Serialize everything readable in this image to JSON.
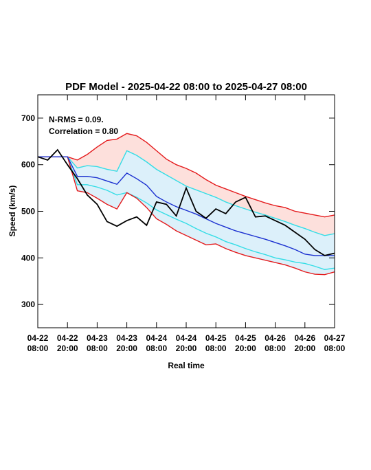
{
  "chart_data": {
    "type": "line",
    "title": "PDF Model - 2025-04-22 08:00 to 2025-04-27 08:00",
    "xlabel": "Real time",
    "ylabel": "Speed (km/s)",
    "annotations": [
      "N-RMS = 0.09.",
      "Correlation = 0.80"
    ],
    "x": [
      "2025-04-22 08:00",
      "2025-04-22 12:00",
      "2025-04-22 16:00",
      "2025-04-22 20:00",
      "2025-04-23 00:00",
      "2025-04-23 04:00",
      "2025-04-23 08:00",
      "2025-04-23 12:00",
      "2025-04-23 16:00",
      "2025-04-23 20:00",
      "2025-04-24 00:00",
      "2025-04-24 04:00",
      "2025-04-24 08:00",
      "2025-04-24 12:00",
      "2025-04-24 16:00",
      "2025-04-24 20:00",
      "2025-04-25 00:00",
      "2025-04-25 04:00",
      "2025-04-25 08:00",
      "2025-04-25 12:00",
      "2025-04-25 16:00",
      "2025-04-25 20:00",
      "2025-04-26 00:00",
      "2025-04-26 04:00",
      "2025-04-26 08:00",
      "2025-04-26 12:00",
      "2025-04-26 16:00",
      "2025-04-26 20:00",
      "2025-04-27 00:00",
      "2025-04-27 04:00",
      "2025-04-27 08:00"
    ],
    "series": [
      {
        "color": "#e41a1c",
        "fill": "#fde0dc",
        "fill_to": 4,
        "values": [
          617,
          617,
          617,
          617,
          610,
          622,
          638,
          652,
          655,
          667,
          662,
          648,
          630,
          612,
          600,
          592,
          582,
          568,
          556,
          548,
          540,
          532,
          525,
          518,
          512,
          508,
          500,
          496,
          492,
          488,
          492
        ]
      },
      {
        "color": "#33dde6",
        "fill": "#dcf0fa",
        "fill_to": 3,
        "values": [
          617,
          617,
          617,
          617,
          593,
          598,
          596,
          590,
          586,
          630,
          620,
          606,
          590,
          578,
          566,
          554,
          546,
          538,
          530,
          520,
          512,
          505,
          498,
          492,
          485,
          478,
          470,
          463,
          455,
          448,
          452
        ]
      },
      {
        "color": "#33dde6",
        "values": [
          617,
          617,
          617,
          617,
          557,
          557,
          552,
          545,
          535,
          540,
          530,
          518,
          503,
          493,
          483,
          474,
          463,
          453,
          445,
          435,
          428,
          420,
          413,
          407,
          400,
          396,
          391,
          388,
          382,
          375,
          378
        ]
      },
      {
        "color": "#e41a1c",
        "values": [
          617,
          617,
          617,
          617,
          544,
          540,
          528,
          515,
          505,
          540,
          528,
          508,
          484,
          472,
          458,
          448,
          438,
          428,
          430,
          420,
          412,
          405,
          400,
          395,
          390,
          385,
          378,
          370,
          365,
          364,
          370
        ]
      },
      {
        "color": "#1a2fd0",
        "values": [
          617,
          617,
          617,
          617,
          575,
          575,
          572,
          565,
          558,
          582,
          570,
          556,
          532,
          520,
          510,
          502,
          494,
          484,
          474,
          466,
          458,
          452,
          446,
          440,
          433,
          426,
          418,
          408,
          405,
          405,
          405
        ]
      },
      {
        "color": "#000000",
        "values": [
          617,
          610,
          632,
          600,
          570,
          535,
          515,
          478,
          468,
          480,
          488,
          470,
          520,
          515,
          490,
          550,
          500,
          485,
          505,
          495,
          520,
          530,
          488,
          490,
          480,
          470,
          455,
          440,
          418,
          405,
          410
        ]
      }
    ],
    "xlim": [
      "2025-04-22 08:00",
      "2025-04-27 08:00"
    ],
    "xticks": [
      {
        "value": "2025-04-22 08:00",
        "label": "04-22\n08:00"
      },
      {
        "value": "2025-04-22 20:00",
        "label": "04-22\n20:00"
      },
      {
        "value": "2025-04-23 08:00",
        "label": "04-23\n08:00"
      },
      {
        "value": "2025-04-23 20:00",
        "label": "04-23\n20:00"
      },
      {
        "value": "2025-04-24 08:00",
        "label": "04-24\n08:00"
      },
      {
        "value": "2025-04-24 20:00",
        "label": "04-24\n20:00"
      },
      {
        "value": "2025-04-25 08:00",
        "label": "04-25\n08:00"
      },
      {
        "value": "2025-04-25 20:00",
        "label": "04-25\n20:00"
      },
      {
        "value": "2025-04-26 08:00",
        "label": "04-26\n08:00"
      },
      {
        "value": "2025-04-26 20:00",
        "label": "04-26\n20:00"
      },
      {
        "value": "2025-04-27 08:00",
        "label": "04-27\n08:00"
      }
    ],
    "ylim": [
      250,
      750
    ],
    "yticks": [
      300,
      400,
      500,
      600,
      700
    ]
  }
}
